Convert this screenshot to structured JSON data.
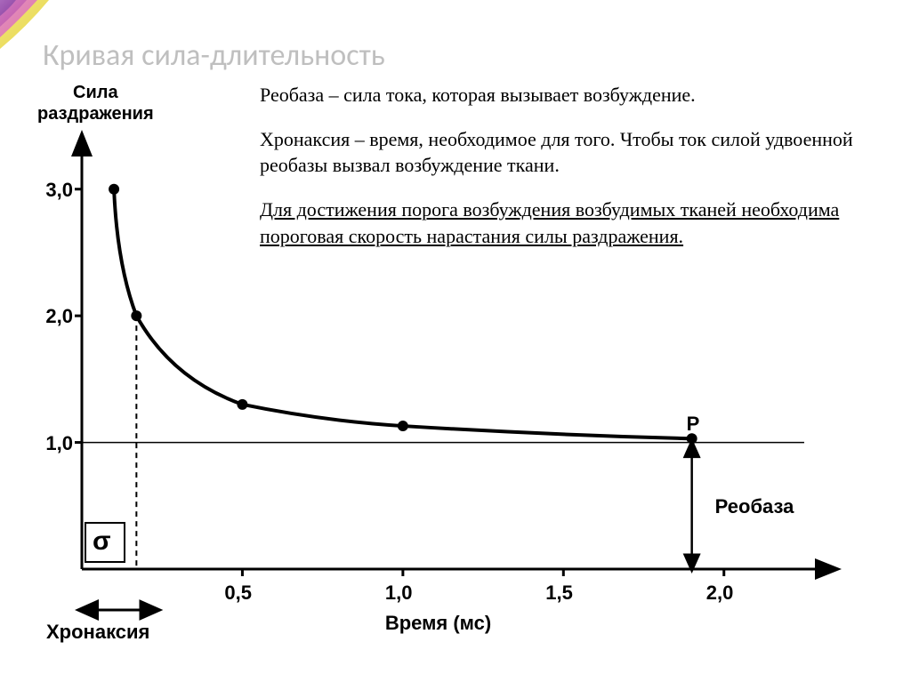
{
  "title": "Кривая сила-длительность",
  "ylabel_line1": "Сила",
  "ylabel_line2": "раздражения",
  "text1": "Реобаза – сила тока, которая вызывает возбуждение.",
  "text2": "Хронаксия – время, необходимое для того. Чтобы ток силой удвоенной реобазы вызвал возбуждение ткани.",
  "text3": "Для достижения порога возбуждения возбудимых тканей необходима пороговая скорость нарастания силы раздражения.",
  "chart": {
    "type": "line",
    "xlabel": "Время (мс)",
    "y_ticks": [
      "1,0",
      "2,0",
      "3,0"
    ],
    "x_ticks": [
      "0,5",
      "1,0",
      "1,5",
      "2,0"
    ],
    "xlim": [
      0,
      2.3
    ],
    "ylim": [
      0,
      3.3
    ],
    "points": [
      {
        "x": 0.1,
        "y": 3.0
      },
      {
        "x": 0.17,
        "y": 2.0
      },
      {
        "x": 0.5,
        "y": 1.3
      },
      {
        "x": 1.0,
        "y": 1.13
      },
      {
        "x": 1.9,
        "y": 1.03
      }
    ],
    "rheobase_x": 1.9,
    "rheobase_y": 1.0,
    "chronaxie_x": 0.17,
    "p_label": "P",
    "rheobase_label": "Реобаза",
    "chronaxie_label": "Хронаксия",
    "sigma_label": "σ",
    "line_color": "#000000",
    "marker_color": "#000000",
    "marker_radius": 6,
    "line_width": 4,
    "axis_width": 3,
    "dash_pattern": "6 5",
    "background_color": "#ffffff"
  },
  "rainbow_colors": [
    "#e8d94a",
    "#d96fa8",
    "#bb4fa8",
    "#8a3fa0"
  ]
}
